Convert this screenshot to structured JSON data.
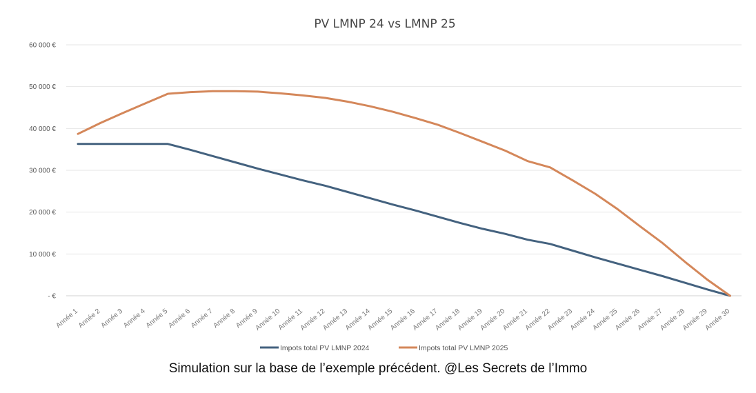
{
  "chart_data": {
    "type": "line",
    "title": "PV LMNP 24 vs LMNP 25",
    "xlabel": "",
    "ylabel": "",
    "ylim": [
      0,
      60000
    ],
    "yticks": [
      0,
      10000,
      20000,
      30000,
      40000,
      50000,
      60000
    ],
    "ytick_labels": [
      "-  €",
      "10 000 €",
      "20 000 €",
      "30 000 €",
      "40 000 €",
      "50 000 €",
      "60 000 €"
    ],
    "categories": [
      "Année 1",
      "Année 2",
      "Année 3",
      "Année 4",
      "Année 5",
      "Année 6",
      "Année 7",
      "Année 8",
      "Année 9",
      "Année 10",
      "Année 11",
      "Année 12",
      "Année 13",
      "Année 14",
      "Année 15",
      "Année 16",
      "Année 17",
      "Année 18",
      "Année 19",
      "Année 20",
      "Année 21",
      "Année 22",
      "Année 23",
      "Année 24",
      "Année 25",
      "Année 26",
      "Année 27",
      "Année 28",
      "Année 29",
      "Année 30"
    ],
    "grid": true,
    "legend_position": "bottom",
    "series": [
      {
        "name": "Impots total PV LMNP 2024",
        "color": "#44627f",
        "values": [
          36300,
          36300,
          36300,
          36300,
          36300,
          34900,
          33400,
          31900,
          30400,
          29000,
          27600,
          26300,
          24800,
          23300,
          21800,
          20400,
          18900,
          17400,
          16000,
          14800,
          13400,
          12400,
          10800,
          9200,
          7700,
          6200,
          4700,
          3100,
          1500,
          0
        ]
      },
      {
        "name": "Impots total PV LMNP 2025",
        "color": "#d4875a",
        "values": [
          38700,
          41300,
          43700,
          46000,
          48300,
          48700,
          48900,
          48900,
          48800,
          48400,
          47900,
          47300,
          46400,
          45300,
          44000,
          42500,
          40900,
          38900,
          36800,
          34700,
          32200,
          30700,
          27600,
          24400,
          20700,
          16600,
          12600,
          8100,
          3800,
          0
        ]
      }
    ]
  },
  "caption": "Simulation sur la base de l’exemple précédent. @Les Secrets de l’Immo"
}
